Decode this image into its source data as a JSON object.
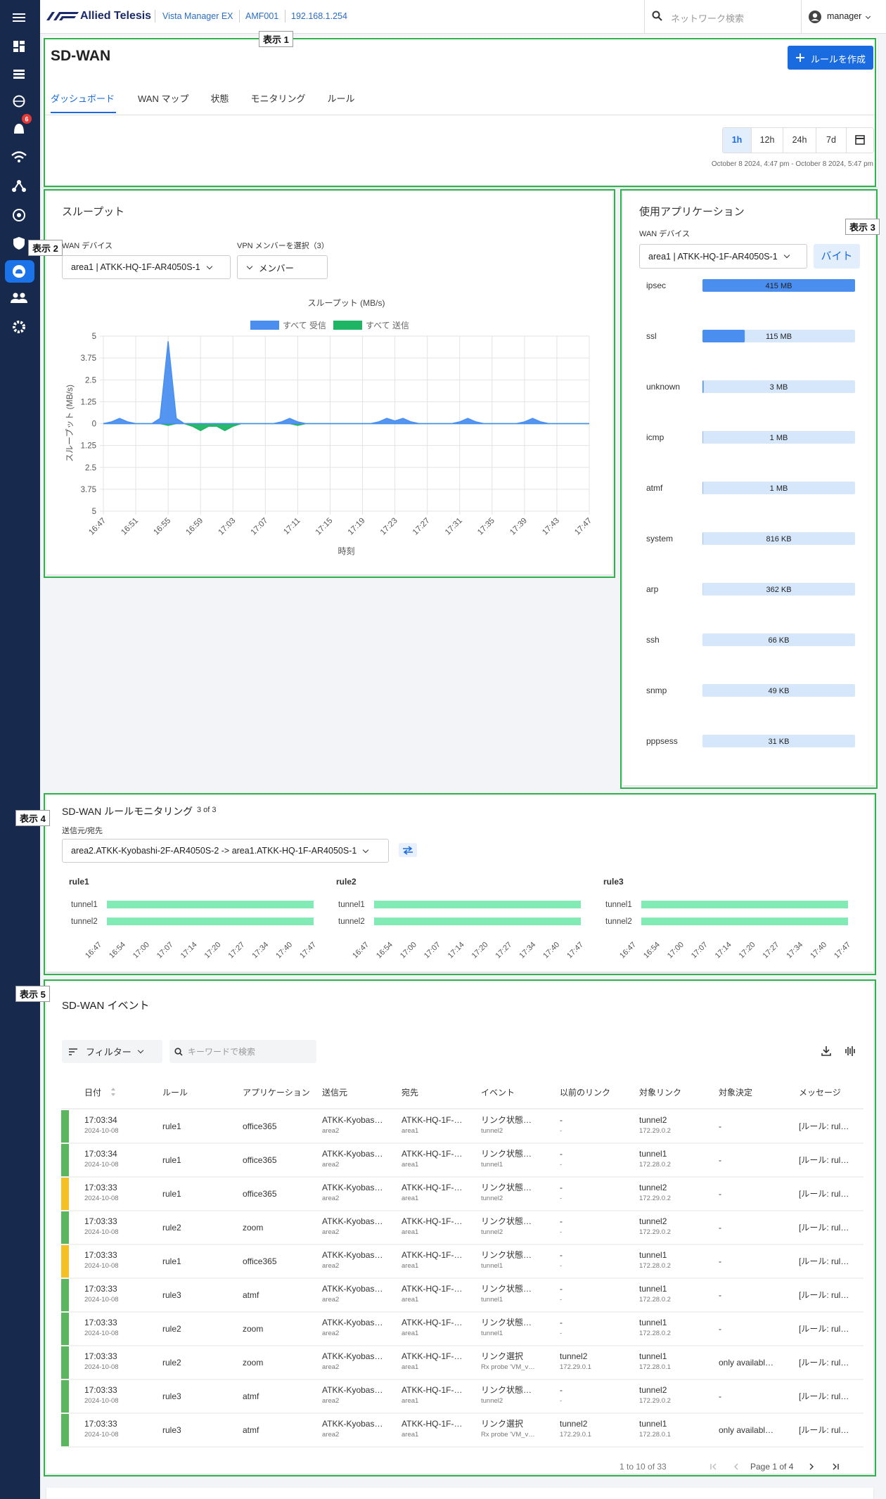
{
  "header": {
    "brand": "Allied Telesis",
    "product": "Vista Manager EX",
    "device": "AMF001",
    "ip": "192.168.1.254",
    "search_placeholder": "ネットワーク検索",
    "user": "manager"
  },
  "sidebar": {
    "alert_count": 6
  },
  "callouts": [
    "表示 1",
    "表示 2",
    "表示 3",
    "表示 4",
    "表示 5"
  ],
  "page": {
    "title": "SD-WAN",
    "create_button": "ルールを作成",
    "tabs": [
      "ダッシュボード",
      "WAN マップ",
      "状態",
      "モニタリング",
      "ルール"
    ],
    "active_tab": 0,
    "time_ranges": [
      "1h",
      "12h",
      "24h",
      "7d"
    ],
    "active_range": 0,
    "time_span": "October 8 2024, 4:47 pm - October 8 2024, 5:47 pm"
  },
  "throughput": {
    "panel_title": "スループット",
    "wan_label": "WAN デバイス",
    "wan_value": "area1 | ATKK-HQ-1F-AR4050S-1",
    "vpn_label": "VPN メンバーを選択（3）",
    "vpn_button": "メンバー",
    "chart_data": {
      "type": "area",
      "title": "スループット (MB/s)",
      "y_label": "スループット (MB/s)",
      "x_label": "時刻",
      "x": [
        "16:47",
        "16:48",
        "16:49",
        "16:50",
        "16:51",
        "16:52",
        "16:53",
        "16:54",
        "16:55",
        "16:56",
        "16:57",
        "16:58",
        "16:59",
        "17:00",
        "17:01",
        "17:02",
        "17:03",
        "17:04",
        "17:05",
        "17:06",
        "17:07",
        "17:08",
        "17:09",
        "17:10",
        "17:11",
        "17:12",
        "17:13",
        "17:14",
        "17:15",
        "17:16",
        "17:17",
        "17:18",
        "17:19",
        "17:20",
        "17:21",
        "17:22",
        "17:23",
        "17:24",
        "17:25",
        "17:26",
        "17:27",
        "17:28",
        "17:29",
        "17:30",
        "17:31",
        "17:32",
        "17:33",
        "17:34",
        "17:35",
        "17:36",
        "17:37",
        "17:38",
        "17:39",
        "17:40",
        "17:41",
        "17:42",
        "17:43",
        "17:44",
        "17:45",
        "17:46",
        "17:47"
      ],
      "xticks": [
        "16:47",
        "16:51",
        "16:55",
        "16:59",
        "17:03",
        "17:07",
        "17:11",
        "17:15",
        "17:19",
        "17:23",
        "17:27",
        "17:31",
        "17:35",
        "17:39",
        "17:43",
        "17:47"
      ],
      "series": [
        {
          "name": "すべて 受信",
          "color": "#4a8ff0",
          "values": [
            0,
            0.1,
            0.3,
            0.1,
            0,
            0,
            0,
            0.3,
            4.7,
            0.3,
            0,
            0,
            0,
            0,
            0,
            0,
            0,
            0,
            0,
            0,
            0,
            0,
            0.1,
            0.3,
            0.1,
            0,
            0,
            0,
            0,
            0,
            0,
            0,
            0,
            0,
            0.1,
            0.3,
            0.15,
            0.3,
            0.1,
            0,
            0,
            0,
            0,
            0,
            0.1,
            0.3,
            0.1,
            0,
            0,
            0,
            0,
            0,
            0.1,
            0.3,
            0.1,
            0,
            0,
            0,
            0,
            0,
            0
          ]
        },
        {
          "name": "すべて 送信",
          "color": "#1eb565",
          "values": [
            0,
            0,
            0,
            0,
            0,
            0,
            0,
            0,
            -0.1,
            0,
            0,
            -0.15,
            -0.4,
            -0.15,
            -0.15,
            -0.4,
            -0.15,
            0,
            0,
            0,
            0,
            0,
            0,
            0,
            -0.1,
            0,
            0,
            0,
            0,
            0,
            0,
            0,
            0,
            0,
            0,
            0,
            0,
            0,
            0,
            0,
            0,
            0,
            0,
            0,
            0,
            0,
            0,
            0,
            0,
            0,
            0,
            0,
            0,
            0,
            0,
            0,
            0,
            0,
            0,
            0,
            0
          ]
        }
      ],
      "ylim": [
        -5,
        5
      ],
      "yticks": [
        5,
        3.75,
        2.5,
        1.25,
        0,
        {
          "value": -1.25,
          "label": "1.25"
        },
        {
          "value": -2.5,
          "label": "2.5"
        },
        {
          "value": -3.75,
          "label": "3.75"
        },
        {
          "value": -5,
          "label": "5"
        }
      ],
      "grid": true
    }
  },
  "apps": {
    "panel_title": "使用アプリケーション",
    "wan_label": "WAN デバイス",
    "wan_value": "area1 | ATKK-HQ-1F-AR4050S-1",
    "unit_button": "バイト",
    "chart_data": {
      "type": "bar",
      "orientation": "horizontal",
      "categories": [
        "ipsec",
        "ssl",
        "unknown",
        "icmp",
        "atmf",
        "system",
        "arp",
        "ssh",
        "snmp",
        "pppsess"
      ],
      "values": [
        415,
        115,
        3,
        1,
        1,
        0.816,
        0.362,
        0.066,
        0.049,
        0.031
      ],
      "value_labels": [
        "415 MB",
        "115 MB",
        "3 MB",
        "1 MB",
        "1 MB",
        "816 KB",
        "362 KB",
        "66 KB",
        "49 KB",
        "31 KB"
      ],
      "color": "#4a8ff0",
      "track_color": "#d6e7fc"
    }
  },
  "rule_monitoring": {
    "title": "SD-WAN ルールモニタリング",
    "count": "3 of 3",
    "pair_label": "送信元/宛先",
    "pair_value": "area2.ATKK-Kyobashi-2F-AR4050S-2 -> area1.ATKK-HQ-1F-AR4050S-1",
    "rules": [
      {
        "name": "rule1",
        "tunnels": [
          "tunnel1",
          "tunnel2"
        ]
      },
      {
        "name": "rule2",
        "tunnels": [
          "tunnel1",
          "tunnel2"
        ]
      },
      {
        "name": "rule3",
        "tunnels": [
          "tunnel1",
          "tunnel2"
        ]
      }
    ],
    "time_ticks": [
      "16:47",
      "16:54",
      "17:00",
      "17:07",
      "17:14",
      "17:20",
      "17:27",
      "17:34",
      "17:40",
      "17:47"
    ],
    "tunnel_color": "#82ebb5"
  },
  "events": {
    "title": "SD-WAN イベント",
    "filter": "フィルター",
    "search_placeholder": "キーワードで検索",
    "columns": [
      "日付",
      "ルール",
      "アプリケーション",
      "送信元",
      "宛先",
      "イベント",
      "以前のリンク",
      "対象リンク",
      "対象決定",
      "メッセージ"
    ],
    "rows": [
      {
        "status": "#5cb660",
        "cells": [
          [
            "17:03:34",
            "2024-10-08"
          ],
          [
            "rule1"
          ],
          [
            "office365"
          ],
          [
            "ATKK-Kyobas…",
            "area2"
          ],
          [
            "ATKK-HQ-1F-…",
            "area1"
          ],
          [
            "リンク状態…",
            "tunnel2"
          ],
          [
            "-",
            "-"
          ],
          [
            "tunnel2",
            "172.29.0.2"
          ],
          [
            "-"
          ],
          [
            "[ルール: rul…"
          ]
        ]
      },
      {
        "status": "#5cb660",
        "cells": [
          [
            "17:03:34",
            "2024-10-08"
          ],
          [
            "rule1"
          ],
          [
            "office365"
          ],
          [
            "ATKK-Kyobas…",
            "area2"
          ],
          [
            "ATKK-HQ-1F-…",
            "area1"
          ],
          [
            "リンク状態…",
            "tunnel1"
          ],
          [
            "-",
            "-"
          ],
          [
            "tunnel1",
            "172.28.0.2"
          ],
          [
            "-"
          ],
          [
            "[ルール: rul…"
          ]
        ]
      },
      {
        "status": "#f5c024",
        "cells": [
          [
            "17:03:33",
            "2024-10-08"
          ],
          [
            "rule1"
          ],
          [
            "office365"
          ],
          [
            "ATKK-Kyobas…",
            "area2"
          ],
          [
            "ATKK-HQ-1F-…",
            "area1"
          ],
          [
            "リンク状態…",
            "tunnel2"
          ],
          [
            "-",
            "-"
          ],
          [
            "tunnel2",
            "172.29.0.2"
          ],
          [
            "-"
          ],
          [
            "[ルール: rul…"
          ]
        ]
      },
      {
        "status": "#5cb660",
        "cells": [
          [
            "17:03:33",
            "2024-10-08"
          ],
          [
            "rule2"
          ],
          [
            "zoom"
          ],
          [
            "ATKK-Kyobas…",
            "area2"
          ],
          [
            "ATKK-HQ-1F-…",
            "area1"
          ],
          [
            "リンク状態…",
            "tunnel2"
          ],
          [
            "-",
            "-"
          ],
          [
            "tunnel2",
            "172.29.0.2"
          ],
          [
            "-"
          ],
          [
            "[ルール: rul…"
          ]
        ]
      },
      {
        "status": "#f5c024",
        "cells": [
          [
            "17:03:33",
            "2024-10-08"
          ],
          [
            "rule1"
          ],
          [
            "office365"
          ],
          [
            "ATKK-Kyobas…",
            "area2"
          ],
          [
            "ATKK-HQ-1F-…",
            "area1"
          ],
          [
            "リンク状態…",
            "tunnel1"
          ],
          [
            "-",
            "-"
          ],
          [
            "tunnel1",
            "172.28.0.2"
          ],
          [
            "-"
          ],
          [
            "[ルール: rul…"
          ]
        ]
      },
      {
        "status": "#5cb660",
        "cells": [
          [
            "17:03:33",
            "2024-10-08"
          ],
          [
            "rule3"
          ],
          [
            "atmf"
          ],
          [
            "ATKK-Kyobas…",
            "area2"
          ],
          [
            "ATKK-HQ-1F-…",
            "area1"
          ],
          [
            "リンク状態…",
            "tunnel1"
          ],
          [
            "-",
            "-"
          ],
          [
            "tunnel1",
            "172.28.0.2"
          ],
          [
            "-"
          ],
          [
            "[ルール: rul…"
          ]
        ]
      },
      {
        "status": "#5cb660",
        "cells": [
          [
            "17:03:33",
            "2024-10-08"
          ],
          [
            "rule2"
          ],
          [
            "zoom"
          ],
          [
            "ATKK-Kyobas…",
            "area2"
          ],
          [
            "ATKK-HQ-1F-…",
            "area1"
          ],
          [
            "リンク状態…",
            "tunnel1"
          ],
          [
            "-",
            "-"
          ],
          [
            "tunnel1",
            "172.28.0.2"
          ],
          [
            "-"
          ],
          [
            "[ルール: rul…"
          ]
        ]
      },
      {
        "status": "#5cb660",
        "cells": [
          [
            "17:03:33",
            "2024-10-08"
          ],
          [
            "rule2"
          ],
          [
            "zoom"
          ],
          [
            "ATKK-Kyobas…",
            "area2"
          ],
          [
            "ATKK-HQ-1F-…",
            "area1"
          ],
          [
            "リンク選択",
            "Rx probe 'VM_v…"
          ],
          [
            "tunnel2",
            "172.29.0.1"
          ],
          [
            "tunnel1",
            "172.28.0.1"
          ],
          [
            "only availabl…"
          ],
          [
            "[ルール: rul…"
          ]
        ]
      },
      {
        "status": "#5cb660",
        "cells": [
          [
            "17:03:33",
            "2024-10-08"
          ],
          [
            "rule3"
          ],
          [
            "atmf"
          ],
          [
            "ATKK-Kyobas…",
            "area2"
          ],
          [
            "ATKK-HQ-1F-…",
            "area1"
          ],
          [
            "リンク状態…",
            "tunnel2"
          ],
          [
            "-",
            "-"
          ],
          [
            "tunnel2",
            "172.29.0.2"
          ],
          [
            "-"
          ],
          [
            "[ルール: rul…"
          ]
        ]
      },
      {
        "status": "#5cb660",
        "cells": [
          [
            "17:03:33",
            "2024-10-08"
          ],
          [
            "rule3"
          ],
          [
            "atmf"
          ],
          [
            "ATKK-Kyobas…",
            "area2"
          ],
          [
            "ATKK-HQ-1F-…",
            "area1"
          ],
          [
            "リンク選択",
            "Rx probe 'VM_v…"
          ],
          [
            "tunnel2",
            "172.29.0.1"
          ],
          [
            "tunnel1",
            "172.28.0.1"
          ],
          [
            "only availabl…"
          ],
          [
            "[ルール: rul…"
          ]
        ]
      }
    ],
    "summary": "1 to 10 of 33",
    "page": "Page 1 of 4"
  }
}
